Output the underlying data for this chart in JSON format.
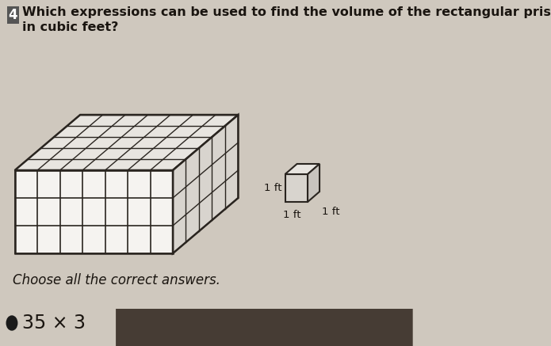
{
  "title_line1": "Which expressions can be used to find the volume of the rectangular prism",
  "title_line2": "in cubic feet?",
  "question_number": "4",
  "choose_text": "Choose all the correct answers.",
  "answer_text": "35 × 3",
  "bg_color": "#cfc8be",
  "prism_facecolor": "#f5f3f0",
  "prism_top_color": "#e8e5e0",
  "prism_right_color": "#d8d4ce",
  "prism_line_color": "#2a2520",
  "small_cube_front": "#d8d4ce",
  "small_cube_top": "#e8e5e0",
  "small_cube_right": "#c8c4be",
  "small_cube_line": "#2a2520",
  "label_1ft_height": "1 ft",
  "label_1ft_width": "1 ft",
  "label_1ft_depth": "1 ft",
  "answer_bullet_color": "#1a1a1a",
  "shadow_color": "#3a3028",
  "font_size_title": 11.5,
  "font_size_answer": 17,
  "font_size_label": 9.5
}
